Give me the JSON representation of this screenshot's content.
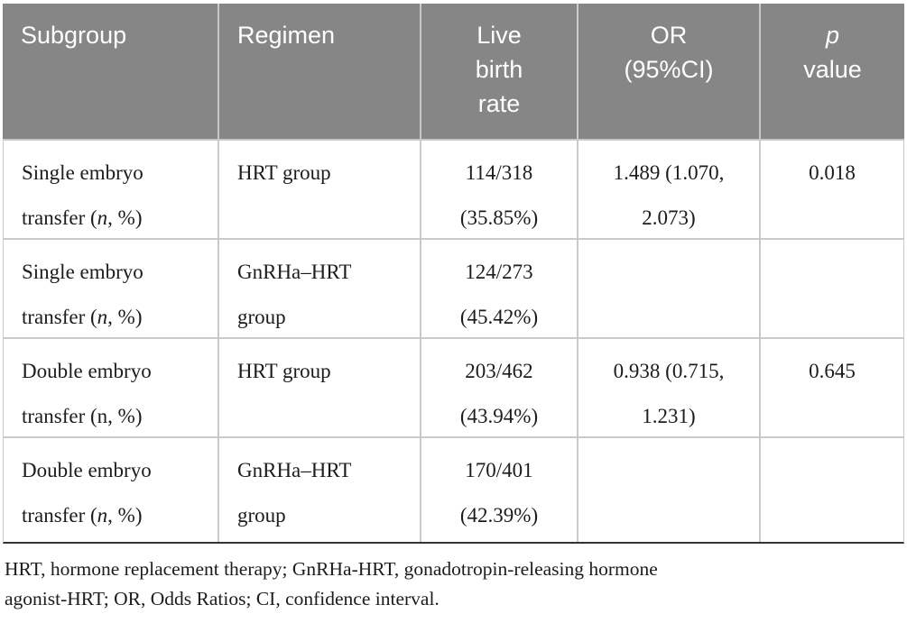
{
  "table": {
    "header_bg": "#868686",
    "header": {
      "subgroup": "Subgroup",
      "regimen": "Regimen",
      "live_birth_rate_lines": [
        "Live",
        "birth",
        "rate"
      ],
      "or_lines": [
        "OR",
        "(95%CI)"
      ],
      "p_symbol": "p",
      "p_rest": "value"
    },
    "rows": [
      {
        "subgroup_line1": "Single embryo",
        "subgroup_line2_pre": "transfer (",
        "subgroup_n": "n",
        "subgroup_n_italic": true,
        "subgroup_line2_post": ", %)",
        "regimen_line1": "HRT group",
        "regimen_line2": "",
        "live_birth_line1": "114/318",
        "live_birth_line2": "(35.85%)",
        "or_line1": "1.489 (1.070,",
        "or_line2": "2.073)",
        "p_value": "0.018"
      },
      {
        "subgroup_line1": "Single embryo",
        "subgroup_line2_pre": "transfer (",
        "subgroup_n": "n",
        "subgroup_n_italic": true,
        "subgroup_line2_post": ", %)",
        "regimen_line1": "GnRHa–HRT",
        "regimen_line2": "group",
        "live_birth_line1": "124/273",
        "live_birth_line2": "(45.42%)",
        "or_line1": "",
        "or_line2": "",
        "p_value": ""
      },
      {
        "subgroup_line1": "Double embryo",
        "subgroup_line2_pre": "transfer (",
        "subgroup_n": "n",
        "subgroup_n_italic": false,
        "subgroup_line2_post": ", %)",
        "regimen_line1": "HRT group",
        "regimen_line2": "",
        "live_birth_line1": "203/462",
        "live_birth_line2": "(43.94%)",
        "or_line1": "0.938 (0.715,",
        "or_line2": "1.231)",
        "p_value": "0.645"
      },
      {
        "subgroup_line1": "Double embryo",
        "subgroup_line2_pre": "transfer (",
        "subgroup_n": "n",
        "subgroup_n_italic": true,
        "subgroup_line2_post": ", %)",
        "regimen_line1": "GnRHa–HRT",
        "regimen_line2": "group",
        "live_birth_line1": "170/401",
        "live_birth_line2": "(42.39%)",
        "or_line1": "",
        "or_line2": "",
        "p_value": ""
      }
    ],
    "footnote_lines": [
      "HRT, hormone replacement therapy; GnRHa-HRT, gonadotropin-releasing hormone",
      "agonist-HRT; OR, Odds Ratios; CI, confidence interval."
    ]
  }
}
